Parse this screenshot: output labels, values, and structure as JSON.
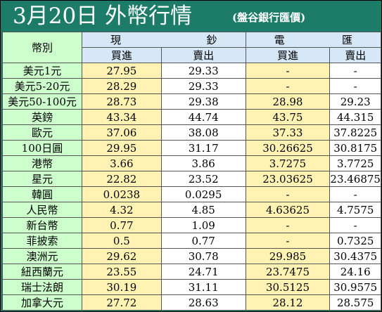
{
  "title": {
    "main": "3月20日 外幣行情",
    "sub": "(盤谷銀行匯價)"
  },
  "header": {
    "currency": "幣別",
    "cash": [
      "現",
      "鈔"
    ],
    "spot": [
      "電",
      "匯"
    ],
    "buy": "買進",
    "sell": "賣出"
  },
  "rows": [
    {
      "currency": "美元1元",
      "cash_buy": "27.95",
      "cash_sell": "29.33",
      "spot_buy": "-",
      "spot_sell": "-"
    },
    {
      "currency": "美元5-20元",
      "cash_buy": "28.29",
      "cash_sell": "29.33",
      "spot_buy": "-",
      "spot_sell": "-"
    },
    {
      "currency": "美元50-100元",
      "cash_buy": "28.73",
      "cash_sell": "29.38",
      "spot_buy": "28.98",
      "spot_sell": "29.23"
    },
    {
      "currency": "英鎊",
      "cash_buy": "43.34",
      "cash_sell": "44.74",
      "spot_buy": "43.75",
      "spot_sell": "44.315"
    },
    {
      "currency": "歐元",
      "cash_buy": "37.06",
      "cash_sell": "38.08",
      "spot_buy": "37.33",
      "spot_sell": "37.8225"
    },
    {
      "currency": "100日圓",
      "cash_buy": "29.95",
      "cash_sell": "31.17",
      "spot_buy": "30.26625",
      "spot_sell": "30.8175"
    },
    {
      "currency": "港幣",
      "cash_buy": "3.66",
      "cash_sell": "3.86",
      "spot_buy": "3.7275",
      "spot_sell": "3.7725"
    },
    {
      "currency": "星元",
      "cash_buy": "22.82",
      "cash_sell": "23.52",
      "spot_buy": "23.03625",
      "spot_sell": "23.46875"
    },
    {
      "currency": "韓圓",
      "cash_buy": "0.0238",
      "cash_sell": "0.0295",
      "spot_buy": "-",
      "spot_sell": "-"
    },
    {
      "currency": "人民幣",
      "cash_buy": "4.32",
      "cash_sell": "4.85",
      "spot_buy": "4.63625",
      "spot_sell": "4.7575"
    },
    {
      "currency": "新台幣",
      "cash_buy": "0.77",
      "cash_sell": "1.09",
      "spot_buy": "-",
      "spot_sell": "-"
    },
    {
      "currency": "菲披索",
      "cash_buy": "0.5",
      "cash_sell": "0.77",
      "spot_buy": "-",
      "spot_sell": "0.7325"
    },
    {
      "currency": "澳洲元",
      "cash_buy": "29.62",
      "cash_sell": "30.78",
      "spot_buy": "29.985",
      "spot_sell": "30.4375"
    },
    {
      "currency": "紐西蘭元",
      "cash_buy": "23.55",
      "cash_sell": "24.71",
      "spot_buy": "23.7475",
      "spot_sell": "24.16"
    },
    {
      "currency": "瑞士法朗",
      "cash_buy": "30.19",
      "cash_sell": "31.11",
      "spot_buy": "30.5125",
      "spot_sell": "30.9575"
    },
    {
      "currency": "加拿大元",
      "cash_buy": "27.72",
      "cash_sell": "28.63",
      "spot_buy": "28.12",
      "spot_sell": "28.575"
    }
  ],
  "colors": {
    "title_bg": "#1c7c68",
    "currency_col": "#ccffcc",
    "buy_col": "#fff2b3",
    "sell_col": "#ffffff",
    "header_blue": "#d6e8f7"
  }
}
